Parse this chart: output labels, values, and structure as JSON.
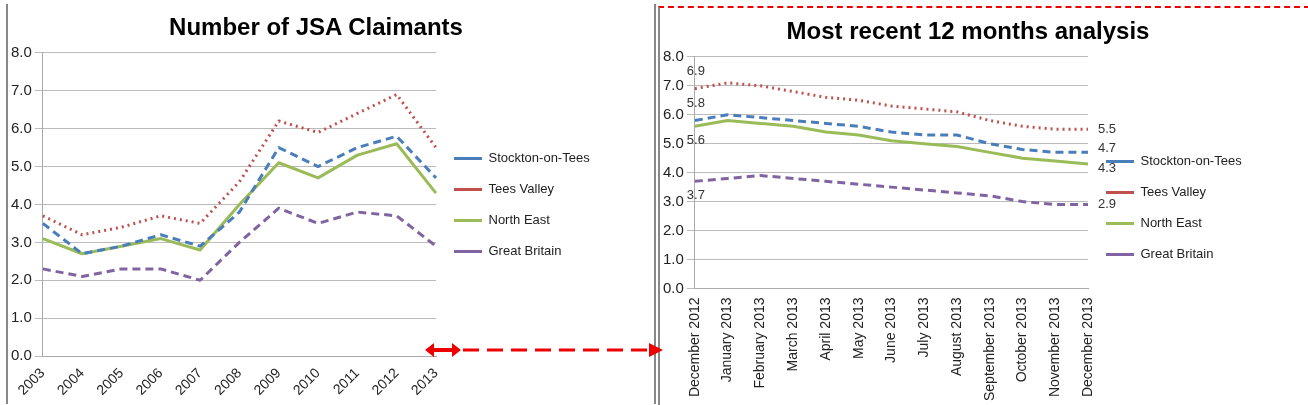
{
  "chart_data": [
    {
      "type": "line",
      "title": "Number of JSA Claimants",
      "categories": [
        "2003",
        "2004",
        "2005",
        "2006",
        "2007",
        "2008",
        "2009",
        "2010",
        "2011",
        "2012",
        "2013"
      ],
      "series": [
        {
          "name": "Stockton-on-Tees",
          "color": "#4a7ebb",
          "line_style": "dashed",
          "values": [
            3.5,
            2.7,
            2.9,
            3.2,
            2.9,
            3.8,
            5.5,
            5.0,
            5.5,
            5.8,
            4.7
          ]
        },
        {
          "name": "Tees Valley",
          "color": "#c0504d",
          "line_style": "dotted",
          "values": [
            3.7,
            3.2,
            3.4,
            3.7,
            3.5,
            4.6,
            6.2,
            5.9,
            6.4,
            6.9,
            5.5
          ]
        },
        {
          "name": "North East",
          "color": "#9bbb59",
          "line_style": "solid",
          "values": [
            3.1,
            2.7,
            2.9,
            3.1,
            2.8,
            4.0,
            5.1,
            4.7,
            5.3,
            5.6,
            4.3
          ]
        },
        {
          "name": "Great Britain",
          "color": "#8064a2",
          "line_style": "dashed",
          "values": [
            2.3,
            2.1,
            2.3,
            2.3,
            2.0,
            3.0,
            3.9,
            3.5,
            3.8,
            3.7,
            2.9
          ]
        }
      ],
      "ylim": [
        0,
        8
      ],
      "yticks": [
        {
          "value": 0,
          "label": "0.0"
        },
        {
          "value": 1,
          "label": "1.0"
        },
        {
          "value": 2,
          "label": "2.0"
        },
        {
          "value": 3,
          "label": "3.0"
        },
        {
          "value": 4,
          "label": "4.0"
        },
        {
          "value": 5,
          "label": "5.0"
        },
        {
          "value": 6,
          "label": "6.0"
        },
        {
          "value": 7,
          "label": "7.0"
        },
        {
          "value": 8,
          "label": "8.0"
        }
      ],
      "grid": "y",
      "legend": "right",
      "marker": "none"
    },
    {
      "type": "line",
      "title": "Most recent 12 months analysis",
      "categories": [
        "December 2012",
        "January 2013",
        "February 2013",
        "March 2013",
        "April 2013",
        "May 2013",
        "June 2013",
        "July 2013",
        "August 2013",
        "September 2013",
        "October 2013",
        "November 2013",
        "December 2013"
      ],
      "series": [
        {
          "name": "Stockton-on-Tees",
          "color": "#4a7ebb",
          "line_style": "dashed",
          "values": [
            5.8,
            6.0,
            5.9,
            5.8,
            5.7,
            5.6,
            5.4,
            5.3,
            5.3,
            5.0,
            4.8,
            4.7,
            4.7
          ],
          "value_labels": [
            "5.8",
            null,
            null,
            null,
            null,
            null,
            null,
            null,
            null,
            null,
            null,
            null,
            "4.7"
          ]
        },
        {
          "name": "Tees Valley",
          "color": "#c0504d",
          "line_style": "dotted",
          "values": [
            6.9,
            7.1,
            7.0,
            6.8,
            6.6,
            6.5,
            6.3,
            6.2,
            6.1,
            5.8,
            5.6,
            5.5,
            5.5
          ],
          "value_labels": [
            "6.9",
            null,
            null,
            null,
            null,
            null,
            null,
            null,
            null,
            null,
            null,
            null,
            "5.5"
          ]
        },
        {
          "name": "North East",
          "color": "#9bbb59",
          "line_style": "solid",
          "values": [
            5.6,
            5.8,
            5.7,
            5.6,
            5.4,
            5.3,
            5.1,
            5.0,
            4.9,
            4.7,
            4.5,
            4.4,
            4.3
          ],
          "value_labels": [
            "5.6",
            null,
            null,
            null,
            null,
            null,
            null,
            null,
            null,
            null,
            null,
            null,
            "4.3"
          ]
        },
        {
          "name": "Great Britain",
          "color": "#8064a2",
          "line_style": "dashed",
          "values": [
            3.7,
            3.8,
            3.9,
            3.8,
            3.7,
            3.6,
            3.5,
            3.4,
            3.3,
            3.2,
            3.0,
            2.9,
            2.9
          ],
          "value_labels": [
            "3.7",
            null,
            null,
            null,
            null,
            null,
            null,
            null,
            null,
            null,
            null,
            null,
            "2.9"
          ]
        }
      ],
      "ylim": [
        0,
        8
      ],
      "yticks": [
        {
          "value": 0,
          "label": "0.0"
        },
        {
          "value": 1,
          "label": "1.0"
        },
        {
          "value": 2,
          "label": "2.0"
        },
        {
          "value": 3,
          "label": "3.0"
        },
        {
          "value": 4,
          "label": "4.0"
        },
        {
          "value": 5,
          "label": "5.0"
        },
        {
          "value": 6,
          "label": "6.0"
        },
        {
          "value": 7,
          "label": "7.0"
        },
        {
          "value": 8,
          "label": "8.0"
        }
      ],
      "grid": "y",
      "legend": "right",
      "marker": "none"
    }
  ]
}
